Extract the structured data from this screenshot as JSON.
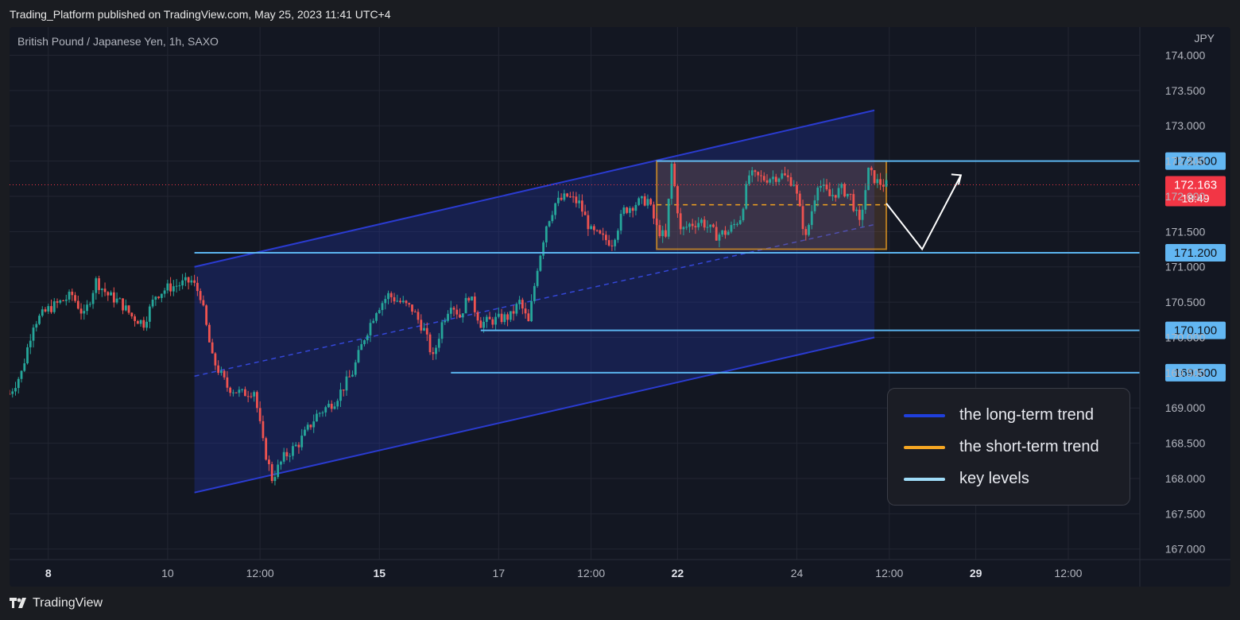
{
  "header": {
    "published": "Trading_Platform published on TradingView.com, May 25, 2023 11:41 UTC+4"
  },
  "chart": {
    "title": "British Pound / Japanese Yen, 1h, SAXO",
    "currency": "JPY"
  },
  "price_axis": {
    "ticks": [
      "174.000",
      "173.500",
      "173.000",
      "172.500",
      "172.000",
      "171.500",
      "171.000",
      "170.500",
      "170.000",
      "169.500",
      "169.000",
      "168.500",
      "168.000",
      "167.500",
      "167.000"
    ]
  },
  "time_axis": {
    "labels": [
      {
        "t": 0,
        "label": "8",
        "bold": true
      },
      {
        "t": 40,
        "label": "10",
        "bold": false
      },
      {
        "t": 71,
        "label": "12:00",
        "bold": false
      },
      {
        "t": 111,
        "label": "15",
        "bold": true
      },
      {
        "t": 151,
        "label": "17",
        "bold": false
      },
      {
        "t": 182,
        "label": "12:00",
        "bold": false
      },
      {
        "t": 211,
        "label": "22",
        "bold": true
      },
      {
        "t": 251,
        "label": "24",
        "bold": false
      },
      {
        "t": 282,
        "label": "12:00",
        "bold": false
      },
      {
        "t": 311,
        "label": "29",
        "bold": true
      },
      {
        "t": 342,
        "label": "12:00",
        "bold": false
      }
    ]
  },
  "key_levels": [
    {
      "price": 172.5,
      "label": "172.500",
      "t_start": 204
    },
    {
      "price": 171.2,
      "label": "171.200",
      "t_start": 49
    },
    {
      "price": 170.1,
      "label": "170.100",
      "t_start": 145
    },
    {
      "price": 169.5,
      "label": "169.500",
      "t_start": 135
    }
  ],
  "current_price": {
    "price": 172.163,
    "label": "172.163",
    "countdown": "18:49",
    "color": "#f23645"
  },
  "long_term_channel": {
    "upper": [
      {
        "t": 49,
        "p": 171.0
      },
      {
        "t": 277,
        "p": 173.22
      }
    ],
    "lower": [
      {
        "t": 49,
        "p": 167.8
      },
      {
        "t": 277,
        "p": 170.0
      }
    ],
    "mid": [
      {
        "t": 49,
        "p": 169.45
      },
      {
        "t": 277,
        "p": 171.6
      }
    ],
    "color": "#2a3bd0"
  },
  "short_term_box": {
    "t_start": 204,
    "t_end": 281,
    "top": 172.5,
    "bottom": 171.25,
    "mid": 171.88,
    "color": "#f0a020"
  },
  "projection": [
    {
      "t": 281,
      "p": 171.9
    },
    {
      "t": 293,
      "p": 171.25
    },
    {
      "t": 306,
      "p": 172.3
    }
  ],
  "legend": [
    {
      "label": "the long-term trend",
      "color": "#1f3fdc"
    },
    {
      "label": "the short-term trend",
      "color": "#f5a623"
    },
    {
      "label": "key levels",
      "color": "#9fdcf8"
    }
  ],
  "colors": {
    "up": "#26a69a",
    "down": "#ef5350",
    "key_level": "#5bb4ef",
    "axis_text": "#b2b5be"
  },
  "footer": {
    "brand": "TradingView"
  },
  "chart_data": {
    "type": "candlestick",
    "title": "British Pound / Japanese Yen, 1h, SAXO",
    "ylabel": "JPY",
    "ylim": [
      166.85,
      174.4
    ],
    "xlim": [
      -13,
      366
    ],
    "anchors": [
      [
        -13,
        169.2
      ],
      [
        -9,
        169.5
      ],
      [
        -5,
        170.2
      ],
      [
        0,
        170.4
      ],
      [
        4,
        170.5
      ],
      [
        8,
        170.6
      ],
      [
        12,
        170.3
      ],
      [
        16,
        170.8
      ],
      [
        20,
        170.6
      ],
      [
        24,
        170.5
      ],
      [
        28,
        170.3
      ],
      [
        32,
        170.2
      ],
      [
        36,
        170.6
      ],
      [
        40,
        170.7
      ],
      [
        44,
        170.75
      ],
      [
        48,
        170.8
      ],
      [
        51,
        170.6
      ],
      [
        55,
        169.7
      ],
      [
        60,
        169.3
      ],
      [
        65,
        169.2
      ],
      [
        69,
        169.25
      ],
      [
        72,
        168.5
      ],
      [
        75,
        168.0
      ],
      [
        79,
        168.3
      ],
      [
        84,
        168.5
      ],
      [
        90,
        168.9
      ],
      [
        96,
        169.1
      ],
      [
        102,
        169.5
      ],
      [
        106,
        170.0
      ],
      [
        110,
        170.4
      ],
      [
        114,
        170.6
      ],
      [
        118,
        170.5
      ],
      [
        122,
        170.4
      ],
      [
        126,
        170.1
      ],
      [
        129,
        169.7
      ],
      [
        132,
        170.2
      ],
      [
        135,
        170.5
      ],
      [
        138,
        170.3
      ],
      [
        141,
        170.6
      ],
      [
        145,
        170.2
      ],
      [
        150,
        170.25
      ],
      [
        155,
        170.3
      ],
      [
        158,
        170.5
      ],
      [
        161,
        170.2
      ],
      [
        164,
        171.0
      ],
      [
        167,
        171.6
      ],
      [
        170,
        171.9
      ],
      [
        174,
        172.0
      ],
      [
        178,
        171.9
      ],
      [
        182,
        171.5
      ],
      [
        186,
        171.4
      ],
      [
        189,
        171.35
      ],
      [
        193,
        171.8
      ],
      [
        197,
        171.9
      ],
      [
        201,
        171.95
      ],
      [
        204,
        171.55
      ],
      [
        207,
        171.4
      ],
      [
        209,
        172.45
      ],
      [
        212,
        171.5
      ],
      [
        215,
        171.6
      ],
      [
        219,
        171.65
      ],
      [
        224,
        171.45
      ],
      [
        228,
        171.5
      ],
      [
        232,
        171.7
      ],
      [
        235,
        172.3
      ],
      [
        240,
        172.25
      ],
      [
        246,
        172.3
      ],
      [
        250,
        172.2
      ],
      [
        254,
        171.4
      ],
      [
        258,
        172.2
      ],
      [
        262,
        172.0
      ],
      [
        266,
        172.1
      ],
      [
        269,
        172.0
      ],
      [
        272,
        171.6
      ],
      [
        275,
        172.35
      ],
      [
        278,
        172.2
      ],
      [
        281,
        172.163
      ]
    ]
  }
}
